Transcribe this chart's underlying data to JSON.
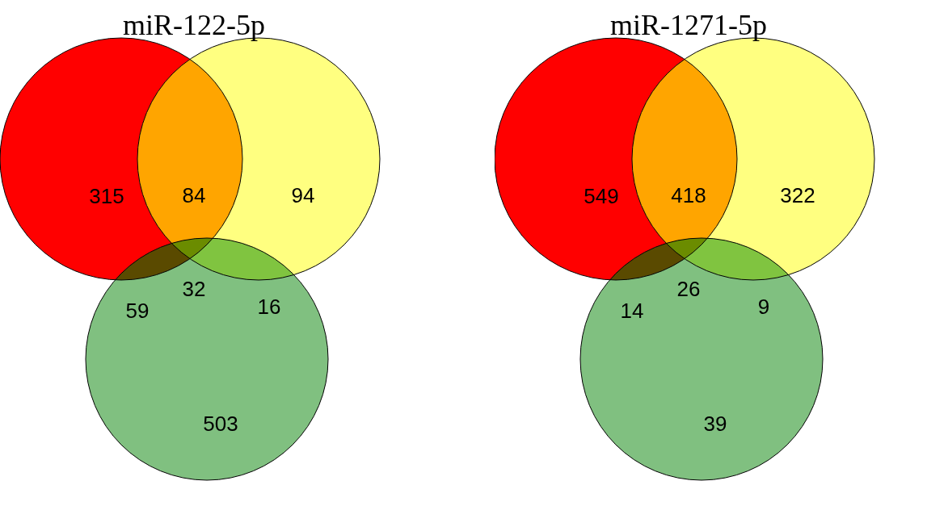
{
  "chart_data": [
    {
      "type": "other",
      "title": "miR-122-5p",
      "categories": [
        null,
        null,
        null,
        null,
        null,
        null,
        null
      ],
      "values": [
        315,
        84,
        94,
        59,
        32,
        16,
        503
      ],
      "colors": [
        "#ff0000",
        "#ffa500",
        "#ffff80",
        "#5a4a00",
        "#6b8c00",
        "#80c440",
        "#80c080"
      ],
      "data_labels": true
    },
    {
      "type": "other",
      "title": "miR-1271-5p",
      "categories": [
        null,
        null,
        null,
        null,
        null,
        null,
        null
      ],
      "values": [
        549,
        418,
        322,
        14,
        26,
        9,
        39
      ],
      "colors": [
        "#ff0000",
        "#ffa500",
        "#ffff80",
        "#5a4a00",
        "#6b8c00",
        "#80c440",
        "#80c080"
      ],
      "data_labels": true
    }
  ]
}
